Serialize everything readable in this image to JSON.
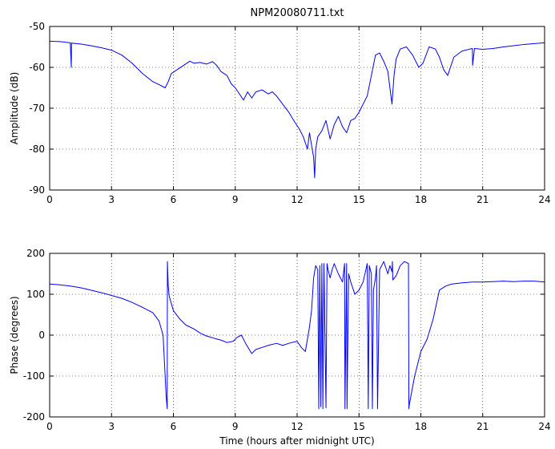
{
  "title": "NPM20080711.txt",
  "chart_data": [
    {
      "type": "line",
      "title": "NPM20080711.txt",
      "xlabel": "",
      "ylabel": "Amplitude (dB)",
      "xlim": [
        0,
        24
      ],
      "ylim": [
        -90,
        -50
      ],
      "xticks": [
        0,
        3,
        6,
        9,
        12,
        15,
        18,
        21,
        24
      ],
      "yticks": [
        -90,
        -80,
        -70,
        -60,
        -50
      ],
      "grid": true,
      "line_color": "#0000ff",
      "series": [
        {
          "x": [
            0,
            0.5,
            1.0,
            1.05,
            1.06,
            1.1,
            1.5,
            2.0,
            2.5,
            3.0,
            3.5,
            4.0,
            4.5,
            5.0,
            5.3,
            5.6,
            5.75,
            5.9,
            6.2,
            6.5,
            6.8,
            7.0,
            7.3,
            7.6,
            7.9,
            8.1,
            8.3,
            8.6,
            8.8,
            9.0,
            9.2,
            9.4,
            9.6,
            9.8,
            10.0,
            10.3,
            10.6,
            10.8,
            11.0,
            11.3,
            11.6,
            11.9,
            12.1,
            12.3,
            12.5,
            12.6,
            12.7,
            12.8,
            12.85,
            12.9,
            13.0,
            13.2,
            13.4,
            13.6,
            13.8,
            14.0,
            14.2,
            14.4,
            14.6,
            14.8,
            15.0,
            15.2,
            15.4,
            15.6,
            15.8,
            16.0,
            16.2,
            16.4,
            16.5,
            16.6,
            16.7,
            16.8,
            17.0,
            17.3,
            17.6,
            17.9,
            18.1,
            18.4,
            18.7,
            18.9,
            19.1,
            19.3,
            19.6,
            20.0,
            20.4,
            20.5,
            20.51,
            20.6,
            21.0,
            21.5,
            22.0,
            22.5,
            23.0,
            23.5,
            24.0
          ],
          "y": [
            -53.6,
            -53.7,
            -54.0,
            -60.0,
            -54.0,
            -54.1,
            -54.3,
            -54.7,
            -55.2,
            -55.8,
            -57.0,
            -59.0,
            -61.5,
            -63.5,
            -64.2,
            -65.0,
            -63.5,
            -61.5,
            -60.5,
            -59.5,
            -58.5,
            -59.0,
            -58.8,
            -59.2,
            -58.6,
            -59.5,
            -61.0,
            -62.0,
            -64.0,
            -65.0,
            -66.5,
            -68.0,
            -66.0,
            -67.5,
            -66.0,
            -65.5,
            -66.5,
            -66.0,
            -67.0,
            -69.0,
            -71.0,
            -73.5,
            -75.0,
            -77.0,
            -80.0,
            -76.0,
            -79.0,
            -82.0,
            -87.0,
            -80.0,
            -77.0,
            -75.5,
            -73.0,
            -77.5,
            -74.0,
            -72.0,
            -74.5,
            -76.0,
            -73.0,
            -72.5,
            -71.0,
            -69.0,
            -67.0,
            -62.0,
            -57.0,
            -56.5,
            -58.5,
            -61.0,
            -65.0,
            -69.0,
            -62.0,
            -58.0,
            -55.5,
            -55.0,
            -57.0,
            -60.0,
            -59.0,
            -55.0,
            -55.5,
            -57.5,
            -60.5,
            -62.0,
            -57.5,
            -56.0,
            -55.5,
            -55.4,
            -59.5,
            -55.4,
            -55.6,
            -55.4,
            -55.0,
            -54.7,
            -54.4,
            -54.2,
            -54.0
          ]
        }
      ]
    },
    {
      "type": "line",
      "title": "",
      "xlabel": "Time (hours after midnight UTC)",
      "ylabel": "Phase (degrees)",
      "xlim": [
        0,
        24
      ],
      "ylim": [
        -200,
        200
      ],
      "xticks": [
        0,
        3,
        6,
        9,
        12,
        15,
        18,
        21,
        24
      ],
      "yticks": [
        -200,
        -100,
        0,
        100,
        200
      ],
      "grid": true,
      "line_color": "#0000ff",
      "series": [
        {
          "x": [
            0,
            0.5,
            1.0,
            1.5,
            2.0,
            2.5,
            3.0,
            3.5,
            4.0,
            4.5,
            5.0,
            5.3,
            5.5,
            5.65,
            5.7,
            5.71,
            5.75,
            5.8,
            6.0,
            6.3,
            6.6,
            7.0,
            7.3,
            7.6,
            8.0,
            8.3,
            8.6,
            8.9,
            9.1,
            9.3,
            9.5,
            9.8,
            10.0,
            10.3,
            10.6,
            11.0,
            11.3,
            11.6,
            12.0,
            12.2,
            12.4,
            12.6,
            12.7,
            12.8,
            12.9,
            13.0,
            13.05,
            13.1,
            13.15,
            13.2,
            13.25,
            13.3,
            13.4,
            13.45,
            13.5,
            13.6,
            13.7,
            13.8,
            14.0,
            14.2,
            14.3,
            14.32,
            14.4,
            14.42,
            14.5,
            14.6,
            14.8,
            15.0,
            15.2,
            15.4,
            15.45,
            15.5,
            15.6,
            15.65,
            15.7,
            15.8,
            15.85,
            15.9,
            16.0,
            16.2,
            16.4,
            16.5,
            16.6,
            16.62,
            16.64,
            16.8,
            17.0,
            17.2,
            17.4,
            17.42,
            17.44,
            17.7,
            18.0,
            18.3,
            18.6,
            18.9,
            19.2,
            19.5,
            20.0,
            20.5,
            21.0,
            21.5,
            22.0,
            22.5,
            23.0,
            23.5,
            24.0
          ],
          "y": [
            125,
            123,
            120,
            116,
            110,
            104,
            97,
            90,
            80,
            68,
            55,
            35,
            0,
            -150,
            -180,
            180,
            120,
            95,
            60,
            40,
            25,
            15,
            5,
            -2,
            -8,
            -12,
            -18,
            -15,
            -5,
            0,
            -20,
            -45,
            -35,
            -30,
            -25,
            -20,
            -25,
            -20,
            -15,
            -30,
            -40,
            20,
            60,
            140,
            170,
            160,
            -180,
            170,
            -175,
            175,
            -180,
            175,
            -178,
            175,
            160,
            140,
            160,
            175,
            150,
            130,
            175,
            -180,
            175,
            -180,
            150,
            130,
            100,
            110,
            130,
            175,
            -180,
            170,
            150,
            -180,
            110,
            140,
            170,
            -180,
            160,
            180,
            150,
            170,
            155,
            180,
            135,
            145,
            170,
            180,
            175,
            -180,
            -170,
            -100,
            -40,
            -10,
            40,
            110,
            120,
            125,
            128,
            130,
            130,
            131,
            132,
            131,
            132,
            132,
            130
          ]
        }
      ]
    }
  ]
}
